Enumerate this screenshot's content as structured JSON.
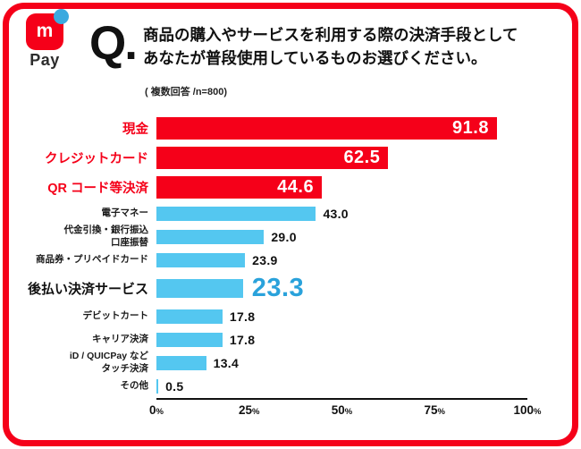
{
  "frame": {
    "border_color": "#F50019"
  },
  "header": {
    "logo": {
      "letter": "m",
      "pay": "Pay"
    },
    "q_label": "Q.",
    "title_line1": "商品の購入やサービスを利用する際の決済手段として",
    "title_line2": "あなたが普段使用しているものお選びください。",
    "note": "( 複数回答 /n=800)"
  },
  "colors": {
    "accent_red": "#F50019",
    "bar_blue": "#54C7F0",
    "highlight_value_blue": "#2AA2DB",
    "logo_dot_blue": "#3BAADF",
    "text_dark": "#111111"
  },
  "chart_data": {
    "type": "bar",
    "orientation": "horizontal",
    "title": "",
    "xlabel": "",
    "ylabel": "",
    "xlim": [
      0,
      100
    ],
    "x_tick_labels": [
      "0",
      "25",
      "50",
      "75",
      "100"
    ],
    "tick_suffix": "%",
    "grid": false,
    "legend": false,
    "rows": [
      {
        "label_lines": [
          "現金"
        ],
        "value": 91.8,
        "value_label": "91.8",
        "style": "red"
      },
      {
        "label_lines": [
          "クレジットカード"
        ],
        "value": 62.5,
        "value_label": "62.5",
        "style": "red"
      },
      {
        "label_lines": [
          "QR コード等決済"
        ],
        "value": 44.6,
        "value_label": "44.6",
        "style": "red"
      },
      {
        "label_lines": [
          "電子マネー"
        ],
        "value": 43.0,
        "value_label": "43.0",
        "style": "blue"
      },
      {
        "label_lines": [
          "代金引換・銀行振込",
          "口座振替"
        ],
        "value": 29.0,
        "value_label": "29.0",
        "style": "blue"
      },
      {
        "label_lines": [
          "商品券・プリペイドカード"
        ],
        "value": 23.9,
        "value_label": "23.9",
        "style": "blue"
      },
      {
        "label_lines": [
          "後払い決済サービス"
        ],
        "value": 23.3,
        "value_label": "23.3",
        "style": "highlight"
      },
      {
        "label_lines": [
          "デビットカート"
        ],
        "value": 17.8,
        "value_label": "17.8",
        "style": "blue"
      },
      {
        "label_lines": [
          "キャリア決済"
        ],
        "value": 17.8,
        "value_label": "17.8",
        "style": "blue"
      },
      {
        "label_lines": [
          "iD / QUICPay など",
          "タッチ決済"
        ],
        "value": 13.4,
        "value_label": "13.4",
        "style": "blue"
      },
      {
        "label_lines": [
          "その他"
        ],
        "value": 0.5,
        "value_label": "0.5",
        "style": "blue"
      }
    ]
  }
}
